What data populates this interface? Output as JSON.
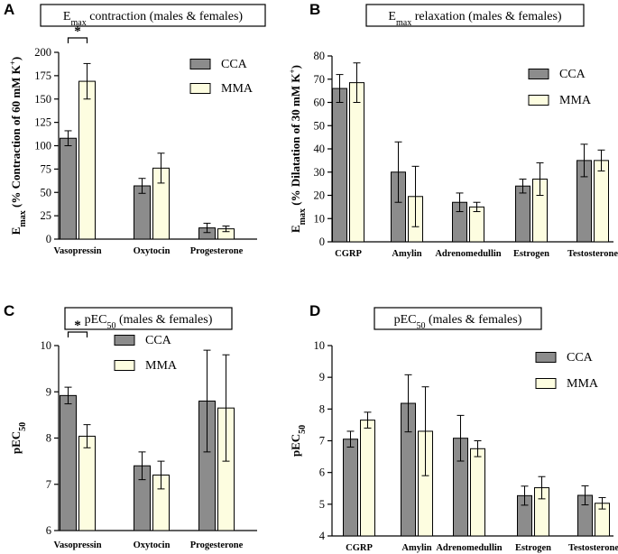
{
  "figure": {
    "colors": {
      "cca": "#8c8c8c",
      "mma": "#fdfde0"
    },
    "legend": [
      "CCA",
      "MMA"
    ]
  },
  "chart_data": [
    {
      "panel": "A",
      "type": "bar",
      "title_main": "E",
      "title_sub": "max",
      "title_rest": " contraction (males & females)",
      "ylabel_main": "E",
      "ylabel_sub": "max",
      "ylabel_rest": " (% Contraction of 60 mM K",
      "ylabel_sup": "+",
      "ylabel_end": ")",
      "ylim": [
        0,
        200
      ],
      "yticks": [
        0,
        25,
        50,
        75,
        100,
        125,
        150,
        175,
        200
      ],
      "categories": [
        "Vasopressin",
        "Oxytocin",
        "Progesterone"
      ],
      "series": [
        {
          "name": "CCA",
          "values": [
            108,
            57,
            12
          ],
          "errors": [
            8,
            8,
            5
          ]
        },
        {
          "name": "MMA",
          "values": [
            169,
            76,
            11
          ],
          "errors": [
            19,
            16,
            3
          ]
        }
      ],
      "significance": [
        {
          "category": "Vasopressin",
          "label": "*"
        }
      ]
    },
    {
      "panel": "B",
      "type": "bar",
      "title_main": "E",
      "title_sub": "max",
      "title_rest": " relaxation (males & females)",
      "ylabel_main": "E",
      "ylabel_sub": "max",
      "ylabel_rest": " (% Dilatation of 30 mM K",
      "ylabel_sup": "+",
      "ylabel_end": ")",
      "ylim": [
        0,
        80
      ],
      "yticks": [
        0,
        10,
        20,
        30,
        40,
        50,
        60,
        70,
        80
      ],
      "categories": [
        "CGRP",
        "Amylin",
        "Adrenomedullin",
        "Estrogen",
        "Testosterone"
      ],
      "series": [
        {
          "name": "CCA",
          "values": [
            66,
            30,
            17,
            24,
            35
          ],
          "errors": [
            6,
            13,
            4,
            3,
            7
          ]
        },
        {
          "name": "MMA",
          "values": [
            68.5,
            19.5,
            15,
            27,
            35
          ],
          "errors": [
            8.5,
            13,
            2,
            7,
            4.5
          ]
        }
      ],
      "significance": []
    },
    {
      "panel": "C",
      "type": "bar",
      "title_main": "pEC",
      "title_sub": "50",
      "title_rest": " (males & females)",
      "ylabel_main": "pEC",
      "ylabel_sub": "50",
      "ylabel_rest": "",
      "ylabel_sup": "",
      "ylabel_end": "",
      "ylim": [
        6,
        10
      ],
      "yticks": [
        6,
        7,
        8,
        9,
        10
      ],
      "categories": [
        "Vasopressin",
        "Oxytocin",
        "Progesterone"
      ],
      "series": [
        {
          "name": "CCA",
          "values": [
            8.92,
            7.4,
            8.8
          ],
          "errors": [
            0.18,
            0.3,
            1.1
          ]
        },
        {
          "name": "MMA",
          "values": [
            8.04,
            7.2,
            8.65
          ],
          "errors": [
            0.25,
            0.3,
            1.15
          ]
        }
      ],
      "significance": [
        {
          "category": "Vasopressin",
          "label": "*"
        }
      ]
    },
    {
      "panel": "D",
      "type": "bar",
      "title_main": "pEC",
      "title_sub": "50",
      "title_rest": " (males & females)",
      "ylabel_main": "pEC",
      "ylabel_sub": "50",
      "ylabel_rest": "",
      "ylabel_sup": "",
      "ylabel_end": "",
      "ylim": [
        4,
        10
      ],
      "yticks": [
        4,
        5,
        6,
        7,
        8,
        9,
        10
      ],
      "categories": [
        "CGRP",
        "Amylin",
        "Adrenomedullin",
        "Estrogen",
        "Testosterone"
      ],
      "series": [
        {
          "name": "CCA",
          "values": [
            7.05,
            8.18,
            7.08,
            5.27,
            5.28
          ],
          "errors": [
            0.25,
            0.9,
            0.72,
            0.3,
            0.3
          ]
        },
        {
          "name": "MMA",
          "values": [
            7.65,
            7.3,
            6.75,
            5.52,
            5.03
          ],
          "errors": [
            0.25,
            1.4,
            0.25,
            0.35,
            0.18
          ]
        }
      ],
      "significance": []
    }
  ]
}
